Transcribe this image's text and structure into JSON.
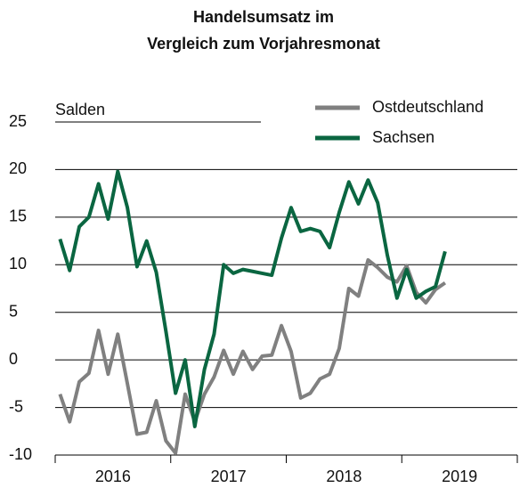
{
  "chart_data": {
    "type": "line",
    "title": [
      "Handelsumsatz im",
      "Vergleich zum Vorjahresmonat"
    ],
    "y_label": "Salden",
    "x_year_labels": [
      "2016",
      "2017",
      "2018",
      "2019"
    ],
    "ylim": [
      -10,
      25
    ],
    "yticks": [
      -10,
      -5,
      0,
      5,
      10,
      15,
      20,
      25
    ],
    "grid": true,
    "legend": "top-right",
    "series": [
      {
        "name": "Ostdeutschland",
        "color": "#808080",
        "values": [
          -3.6,
          -6.5,
          -2.3,
          -1.4,
          3.1,
          -1.5,
          2.7,
          -2.5,
          -7.8,
          -7.6,
          -4.3,
          -8.5,
          -9.8,
          -3.6,
          -6.5,
          -3.6,
          -1.8,
          1,
          -1.5,
          0.9,
          -1,
          0.4,
          0.5,
          3.6,
          0.9,
          -4,
          -3.5,
          -2,
          -1.5,
          1.2,
          7.5,
          6.7,
          10.5,
          9.7,
          8.7,
          8.2,
          9.9,
          7.1,
          6,
          7.4,
          8.1
        ]
      },
      {
        "name": "Sachsen",
        "color": "#0a6641",
        "values": [
          12.7,
          9.4,
          14,
          15,
          18.5,
          14.8,
          19.8,
          16,
          9.8,
          12.5,
          9.2,
          3,
          -3.5,
          0,
          -7,
          -1,
          2.7,
          10,
          9.1,
          9.5,
          9.3,
          9.1,
          8.9,
          12.8,
          16,
          13.5,
          13.8,
          13.5,
          11.8,
          15.5,
          18.7,
          16.4,
          18.9,
          16.5,
          11,
          6.5,
          9.5,
          6.5,
          7.2,
          7.7,
          11.4
        ]
      }
    ]
  }
}
